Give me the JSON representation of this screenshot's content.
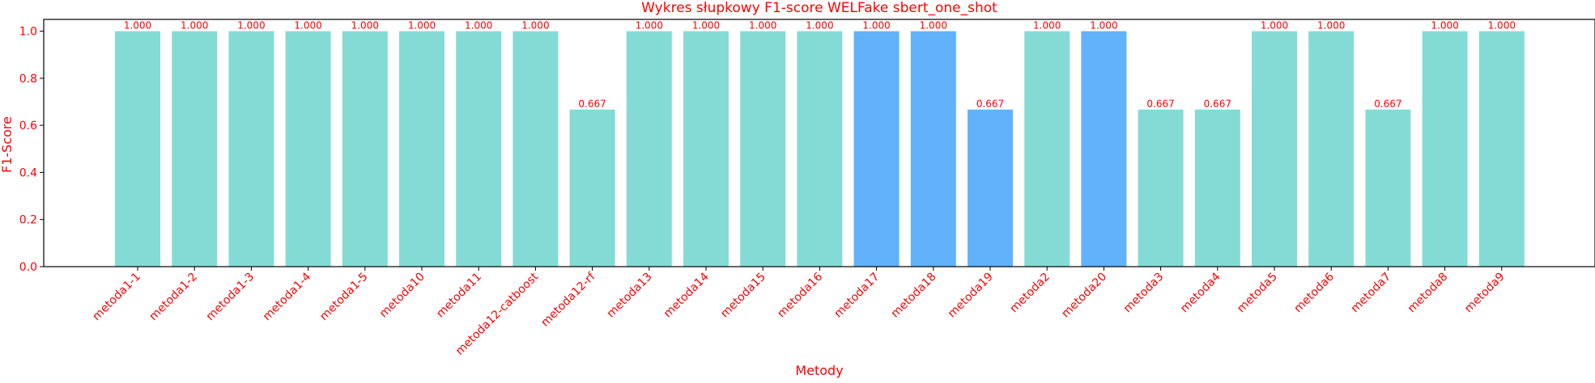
{
  "chart_data": {
    "type": "bar",
    "title": "Wykres słupkowy F1-score WELFake sbert_one_shot",
    "xlabel": "Metody",
    "ylabel": "F1-Score",
    "ylim": [
      0,
      1.05
    ],
    "yticks": [
      "0.0",
      "0.2",
      "0.4",
      "0.6",
      "0.8",
      "1.0"
    ],
    "grid": false,
    "categories": [
      "metoda1-1",
      "metoda1-2",
      "metoda1-3",
      "metoda1-4",
      "metoda1-5",
      "metoda10",
      "metoda11",
      "metoda12-catboost",
      "metoda12-rf",
      "metoda13",
      "metoda14",
      "metoda15",
      "metoda16",
      "metoda17",
      "metoda18",
      "metoda19",
      "metoda2",
      "metoda20",
      "metoda3",
      "metoda4",
      "metoda5",
      "metoda6",
      "metoda7",
      "metoda8",
      "metoda9"
    ],
    "values": [
      1.0,
      1.0,
      1.0,
      1.0,
      1.0,
      1.0,
      1.0,
      1.0,
      0.667,
      1.0,
      1.0,
      1.0,
      1.0,
      1.0,
      1.0,
      0.667,
      1.0,
      1.0,
      0.667,
      0.667,
      1.0,
      1.0,
      0.667,
      1.0,
      1.0
    ],
    "value_labels": [
      "1.000",
      "1.000",
      "1.000",
      "1.000",
      "1.000",
      "1.000",
      "1.000",
      "1.000",
      "0.667",
      "1.000",
      "1.000",
      "1.000",
      "1.000",
      "1.000",
      "1.000",
      "0.667",
      "1.000",
      "1.000",
      "0.667",
      "0.667",
      "1.000",
      "1.000",
      "0.667",
      "1.000",
      "1.000"
    ],
    "bar_colors": [
      "#84dbd6",
      "#84dbd6",
      "#84dbd6",
      "#84dbd6",
      "#84dbd6",
      "#84dbd6",
      "#84dbd6",
      "#84dbd6",
      "#84dbd6",
      "#84dbd6",
      "#84dbd6",
      "#84dbd6",
      "#84dbd6",
      "#62b2fb",
      "#62b2fb",
      "#62b2fb",
      "#84dbd6",
      "#62b2fb",
      "#84dbd6",
      "#84dbd6",
      "#84dbd6",
      "#84dbd6",
      "#84dbd6",
      "#84dbd6",
      "#84dbd6"
    ],
    "text_color": "#ff0000",
    "axis_color": "#000000"
  }
}
